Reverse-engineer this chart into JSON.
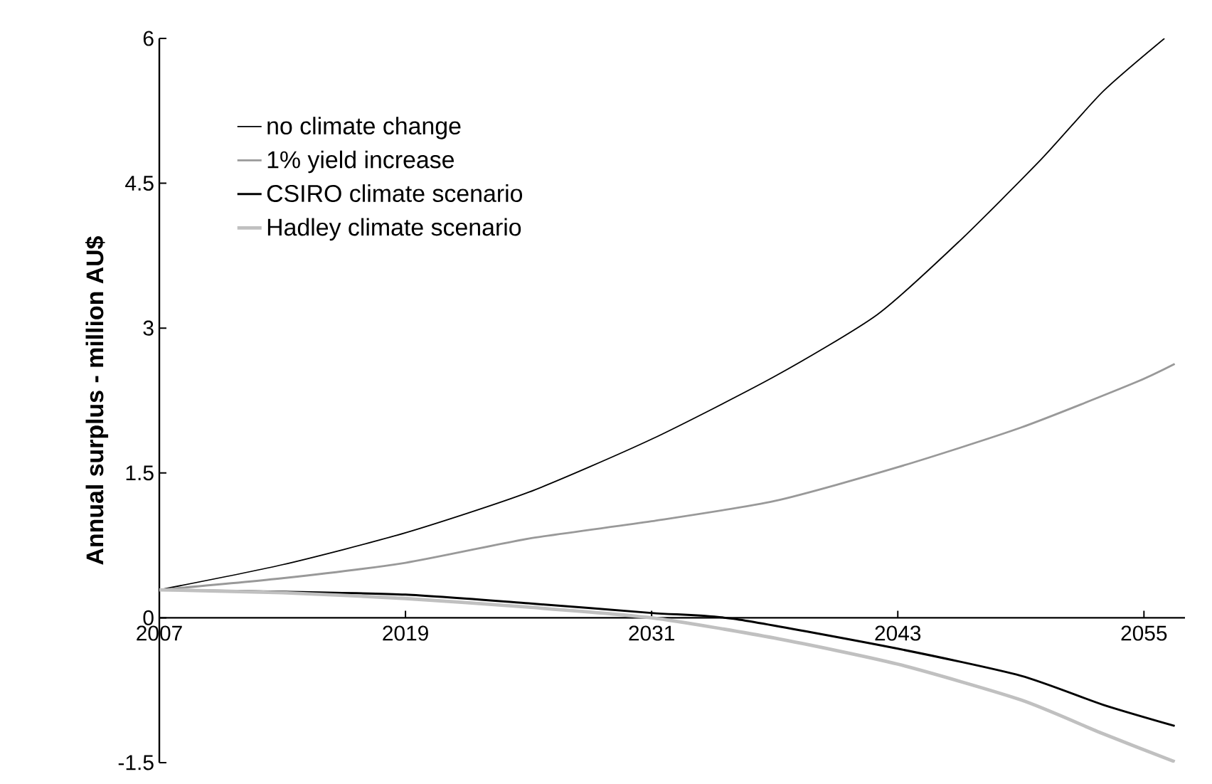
{
  "chart_data": {
    "type": "line",
    "ylabel": "Annual surplus - million AU$",
    "xlim": [
      2007,
      2057
    ],
    "xticks": [
      2007,
      2019,
      2031,
      2043,
      2055
    ],
    "ylim": [
      -1.5,
      6
    ],
    "yticks": [
      -1.5,
      0,
      1.5,
      3,
      4.5,
      6
    ],
    "legend": "top left",
    "grid": false,
    "marker": "none",
    "line_style": "solid",
    "series": [
      {
        "name": "no climate change",
        "color": "#000000",
        "x": [
          2007,
          2013,
          2019,
          2025,
          2031,
          2037,
          2042,
          2046,
          2050,
          2053,
          2056
        ],
        "values": [
          0.29,
          0.55,
          0.88,
          1.3,
          1.85,
          2.5,
          3.14,
          3.9,
          4.75,
          5.45,
          6.0
        ]
      },
      {
        "name": "1% yield increase",
        "color": "#999999",
        "x": [
          2007,
          2013,
          2019,
          2025,
          2031,
          2037,
          2043,
          2049,
          2054.5,
          2056.5
        ],
        "values": [
          0.29,
          0.41,
          0.57,
          0.82,
          1.0,
          1.21,
          1.56,
          1.97,
          2.43,
          2.63
        ]
      },
      {
        "name": "CSIRO climate scenario",
        "color": "#000000",
        "x": [
          2007,
          2013,
          2019,
          2025,
          2031,
          2035,
          2043,
          2049,
          2053,
          2056.5
        ],
        "values": [
          0.29,
          0.27,
          0.24,
          0.15,
          0.05,
          -0.01,
          -0.32,
          -0.6,
          -0.9,
          -1.12
        ]
      },
      {
        "name": "Hadley climate scenario",
        "color": "#c0c0c0",
        "x": [
          2007,
          2013,
          2019,
          2025,
          2031,
          2037,
          2043,
          2049,
          2053,
          2056.5
        ],
        "values": [
          0.29,
          0.26,
          0.2,
          0.11,
          0.0,
          -0.21,
          -0.48,
          -0.85,
          -1.2,
          -1.49
        ]
      }
    ]
  }
}
